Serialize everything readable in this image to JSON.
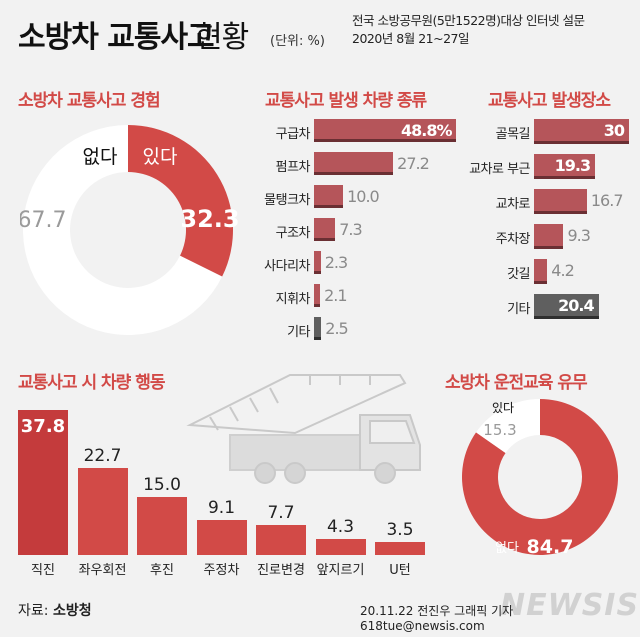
{
  "header": {
    "title_bold": "소방차 교통사고",
    "title_light": "현황",
    "unit": "(단위: %)",
    "survey_line1": "전국 소방공무원(5만1522명)대상 인터넷 설문",
    "survey_line2": "2020년 8월 21~27일"
  },
  "colors": {
    "accent": "#d24a47",
    "bar_mid": "#b5555a",
    "bar_dark": "#6a2f33",
    "grey_bar": "#5f5f5f",
    "background": "#f2f2f2"
  },
  "chart_data": [
    {
      "id": "experience",
      "type": "pie",
      "title": "소방차 교통사고 경험",
      "slices": [
        {
          "label": "있다",
          "value": 32.3,
          "value_label": "32.3"
        },
        {
          "label": "없다",
          "value": 67.7,
          "value_label": "67.7"
        }
      ]
    },
    {
      "id": "vehicle_types",
      "type": "bar",
      "orientation": "horizontal",
      "title": "교통사고 발생 차량 종류",
      "categories": [
        "구급차",
        "펌프차",
        "물탱크차",
        "구조차",
        "사다리차",
        "지휘차",
        "기타"
      ],
      "values": [
        48.8,
        27.2,
        10.0,
        7.3,
        2.3,
        2.1,
        2.5
      ],
      "value_labels": [
        "48.8%",
        "27.2",
        "10.0",
        "7.3",
        "2.3",
        "2.1",
        "2.5"
      ]
    },
    {
      "id": "locations",
      "type": "bar",
      "orientation": "horizontal",
      "title": "교통사고 발생장소",
      "categories": [
        "골목길",
        "교차로 부근",
        "교차로",
        "주차장",
        "갓길",
        "기타"
      ],
      "values": [
        30,
        19.3,
        16.7,
        9.3,
        4.2,
        20.4
      ],
      "value_labels": [
        "30",
        "19.3",
        "16.7",
        "9.3",
        "4.2",
        "20.4"
      ]
    },
    {
      "id": "actions",
      "type": "bar",
      "orientation": "vertical",
      "title": "교통사고 시 차량 행동",
      "categories": [
        "직진",
        "좌우회전",
        "후진",
        "주정차",
        "진로변경",
        "앞지르기",
        "U턴"
      ],
      "values": [
        37.8,
        22.7,
        15.0,
        9.1,
        7.7,
        4.3,
        3.5
      ],
      "value_labels": [
        "37.8",
        "22.7",
        "15.0",
        "9.1",
        "7.7",
        "4.3",
        "3.5"
      ]
    },
    {
      "id": "education",
      "type": "pie",
      "title": "소방차 운전교육 유무",
      "slices": [
        {
          "label": "없다",
          "value": 84.7,
          "value_label": "84.7"
        },
        {
          "label": "있다",
          "value": 15.3,
          "value_label": "15.3"
        }
      ]
    }
  ],
  "footer": {
    "source_prefix": "자료:",
    "source_name": "소방청",
    "credit": "20.11.22 전진우 그래픽 기자 618tue@newsis.com",
    "watermark": "NEWSIS"
  }
}
